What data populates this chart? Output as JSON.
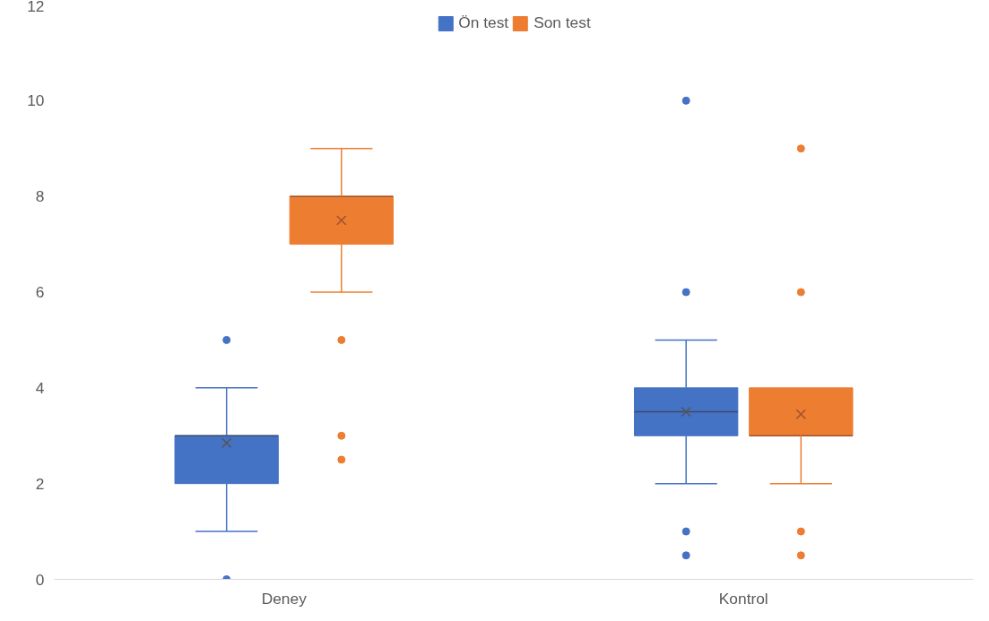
{
  "chart_data": {
    "type": "box",
    "categories": [
      "Deney",
      "Kontrol"
    ],
    "series": [
      {
        "name": "Ön test",
        "color": "#4472c4",
        "boxes": [
          {
            "low": 1,
            "q1": 2,
            "median": 3,
            "q3": 3,
            "high": 4,
            "mean": 2.85,
            "outliers": [
              5,
              0
            ]
          },
          {
            "low": 2,
            "q1": 3,
            "median": 3.5,
            "q3": 4,
            "high": 5,
            "mean": 3.5,
            "outliers": [
              10,
              6,
              1,
              0.5
            ]
          }
        ]
      },
      {
        "name": "Son test",
        "color": "#ed7d31",
        "boxes": [
          {
            "low": 6,
            "q1": 7,
            "median": 8,
            "q3": 8,
            "high": 9,
            "mean": 7.5,
            "outliers": [
              5,
              3,
              2.5
            ]
          },
          {
            "low": 2,
            "q1": 3,
            "median": 3,
            "q3": 4,
            "high": 4,
            "mean": 3.45,
            "outliers": [
              9,
              6,
              1,
              0.5
            ]
          }
        ]
      }
    ],
    "ylim": [
      0,
      12
    ],
    "yticks": [
      0,
      2,
      4,
      6,
      8,
      10,
      12
    ],
    "grid": false,
    "legend": "top"
  }
}
